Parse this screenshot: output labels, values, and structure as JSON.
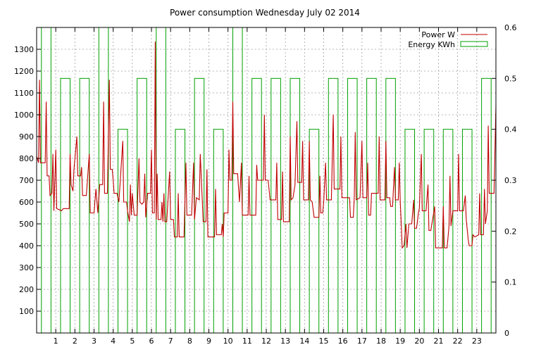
{
  "chart_data": {
    "type": "line",
    "title": "Power consumption Wednesday July 02 2014",
    "xlabel": "",
    "ylabel": "",
    "y2label": "",
    "xlim": [
      0,
      24
    ],
    "ylim": [
      0,
      1400
    ],
    "y2lim": [
      0,
      0.6
    ],
    "x_ticks": [
      1,
      2,
      3,
      4,
      5,
      6,
      7,
      8,
      9,
      10,
      11,
      12,
      13,
      14,
      15,
      16,
      17,
      18,
      19,
      20,
      21,
      22,
      23
    ],
    "y_ticks": [
      100,
      200,
      300,
      400,
      500,
      600,
      700,
      800,
      900,
      1000,
      1100,
      1200,
      1300
    ],
    "y2_ticks": [
      0,
      0.1,
      0.2,
      0.3,
      0.4,
      0.5,
      0.6
    ],
    "y2_tick_labels": [
      "0",
      "0.1",
      "0.2",
      "0.3",
      "0.4",
      "0.5",
      "0.6"
    ],
    "grid": true,
    "legend_position": "top-right",
    "series": [
      {
        "name": "Power W",
        "axis": "left",
        "style": "line",
        "color": "#c00000",
        "points": [
          [
            0.0,
            810
          ],
          [
            0.1,
            780
          ],
          [
            0.15,
            1160
          ],
          [
            0.2,
            780
          ],
          [
            0.45,
            780
          ],
          [
            0.5,
            1060
          ],
          [
            0.55,
            720
          ],
          [
            0.65,
            720
          ],
          [
            0.7,
            630
          ],
          [
            0.8,
            640
          ],
          [
            0.85,
            820
          ],
          [
            0.9,
            560
          ],
          [
            1.0,
            840
          ],
          [
            1.05,
            570
          ],
          [
            1.3,
            560
          ],
          [
            1.4,
            570
          ],
          [
            1.6,
            570
          ],
          [
            1.7,
            570
          ],
          [
            1.75,
            820
          ],
          [
            1.8,
            680
          ],
          [
            1.9,
            650
          ],
          [
            1.95,
            750
          ],
          [
            2.1,
            900
          ],
          [
            2.15,
            720
          ],
          [
            2.3,
            720
          ],
          [
            2.35,
            760
          ],
          [
            2.4,
            630
          ],
          [
            2.6,
            630
          ],
          [
            2.75,
            820
          ],
          [
            2.8,
            550
          ],
          [
            3.0,
            550
          ],
          [
            3.1,
            660
          ],
          [
            3.2,
            550
          ],
          [
            3.3,
            680
          ],
          [
            3.45,
            680
          ],
          [
            3.5,
            1060
          ],
          [
            3.55,
            640
          ],
          [
            3.7,
            640
          ],
          [
            3.8,
            1160
          ],
          [
            3.85,
            750
          ],
          [
            3.95,
            750
          ],
          [
            4.0,
            700
          ],
          [
            4.05,
            640
          ],
          [
            4.2,
            640
          ],
          [
            4.3,
            600
          ],
          [
            4.5,
            880
          ],
          [
            4.55,
            600
          ],
          [
            4.7,
            600
          ],
          [
            4.75,
            560
          ],
          [
            4.85,
            510
          ],
          [
            4.9,
            680
          ],
          [
            4.95,
            540
          ],
          [
            5.0,
            640
          ],
          [
            5.1,
            540
          ],
          [
            5.25,
            540
          ],
          [
            5.35,
            800
          ],
          [
            5.4,
            600
          ],
          [
            5.5,
            590
          ],
          [
            5.6,
            600
          ],
          [
            5.65,
            730
          ],
          [
            5.7,
            530
          ],
          [
            5.8,
            640
          ],
          [
            5.95,
            640
          ],
          [
            6.0,
            840
          ],
          [
            6.05,
            550
          ],
          [
            6.15,
            550
          ],
          [
            6.2,
            1335
          ],
          [
            6.25,
            520
          ],
          [
            6.3,
            730
          ],
          [
            6.35,
            520
          ],
          [
            6.5,
            520
          ],
          [
            6.55,
            600
          ],
          [
            6.6,
            510
          ],
          [
            6.65,
            640
          ],
          [
            6.7,
            510
          ],
          [
            6.8,
            510
          ],
          [
            6.95,
            740
          ],
          [
            7.0,
            520
          ],
          [
            7.15,
            520
          ],
          [
            7.2,
            440
          ],
          [
            7.35,
            440
          ],
          [
            7.4,
            640
          ],
          [
            7.45,
            440
          ],
          [
            7.7,
            440
          ],
          [
            7.8,
            780
          ],
          [
            7.85,
            540
          ],
          [
            8.1,
            540
          ],
          [
            8.2,
            780
          ],
          [
            8.25,
            520
          ],
          [
            8.35,
            620
          ],
          [
            8.5,
            610
          ],
          [
            8.55,
            820
          ],
          [
            8.65,
            620
          ],
          [
            8.7,
            510
          ],
          [
            8.85,
            510
          ],
          [
            8.9,
            750
          ],
          [
            8.95,
            440
          ],
          [
            9.3,
            440
          ],
          [
            9.35,
            660
          ],
          [
            9.4,
            450
          ],
          [
            9.65,
            450
          ],
          [
            9.7,
            500
          ],
          [
            9.75,
            440
          ],
          [
            9.8,
            550
          ],
          [
            10.0,
            550
          ],
          [
            10.05,
            840
          ],
          [
            10.1,
            700
          ],
          [
            10.2,
            700
          ],
          [
            10.25,
            1060
          ],
          [
            10.3,
            730
          ],
          [
            10.5,
            730
          ],
          [
            10.6,
            600
          ],
          [
            10.7,
            780
          ],
          [
            10.75,
            540
          ],
          [
            11.05,
            540
          ],
          [
            11.1,
            720
          ],
          [
            11.15,
            540
          ],
          [
            11.45,
            540
          ],
          [
            11.5,
            770
          ],
          [
            11.55,
            700
          ],
          [
            11.85,
            700
          ],
          [
            11.9,
            1000
          ],
          [
            11.95,
            700
          ],
          [
            12.1,
            700
          ],
          [
            12.2,
            610
          ],
          [
            12.5,
            610
          ],
          [
            12.55,
            780
          ],
          [
            12.6,
            520
          ],
          [
            12.7,
            520
          ],
          [
            12.8,
            520
          ],
          [
            12.85,
            740
          ],
          [
            12.9,
            510
          ],
          [
            13.2,
            510
          ],
          [
            13.25,
            900
          ],
          [
            13.3,
            610
          ],
          [
            13.4,
            620
          ],
          [
            13.5,
            680
          ],
          [
            13.6,
            970
          ],
          [
            13.65,
            690
          ],
          [
            13.85,
            690
          ],
          [
            13.9,
            880
          ],
          [
            13.95,
            610
          ],
          [
            14.2,
            610
          ],
          [
            14.25,
            880
          ],
          [
            14.3,
            610
          ],
          [
            14.4,
            600
          ],
          [
            14.5,
            530
          ],
          [
            14.75,
            530
          ],
          [
            14.8,
            720
          ],
          [
            14.85,
            550
          ],
          [
            14.95,
            550
          ],
          [
            15.0,
            600
          ],
          [
            15.1,
            780
          ],
          [
            15.15,
            610
          ],
          [
            15.4,
            610
          ],
          [
            15.5,
            1000
          ],
          [
            15.55,
            660
          ],
          [
            15.85,
            660
          ],
          [
            15.9,
            900
          ],
          [
            15.95,
            620
          ],
          [
            16.35,
            620
          ],
          [
            16.4,
            530
          ],
          [
            16.55,
            530
          ],
          [
            16.6,
            630
          ],
          [
            16.65,
            920
          ],
          [
            16.7,
            610
          ],
          [
            16.9,
            620
          ],
          [
            17.0,
            880
          ],
          [
            17.05,
            620
          ],
          [
            17.25,
            620
          ],
          [
            17.3,
            780
          ],
          [
            17.35,
            540
          ],
          [
            17.45,
            540
          ],
          [
            17.5,
            640
          ],
          [
            17.85,
            640
          ],
          [
            17.9,
            900
          ],
          [
            17.95,
            610
          ],
          [
            18.2,
            610
          ],
          [
            18.25,
            880
          ],
          [
            18.3,
            620
          ],
          [
            18.45,
            620
          ],
          [
            18.5,
            580
          ],
          [
            18.6,
            580
          ],
          [
            18.7,
            760
          ],
          [
            18.75,
            610
          ],
          [
            18.9,
            610
          ],
          [
            18.95,
            780
          ],
          [
            19.0,
            600
          ],
          [
            19.05,
            510
          ],
          [
            19.1,
            390
          ],
          [
            19.2,
            400
          ],
          [
            19.3,
            500
          ],
          [
            19.35,
            390
          ],
          [
            19.45,
            500
          ],
          [
            19.6,
            500
          ],
          [
            19.7,
            610
          ],
          [
            19.75,
            480
          ],
          [
            19.85,
            480
          ],
          [
            19.95,
            550
          ],
          [
            20.0,
            570
          ],
          [
            20.1,
            820
          ],
          [
            20.15,
            560
          ],
          [
            20.35,
            560
          ],
          [
            20.45,
            680
          ],
          [
            20.5,
            470
          ],
          [
            20.6,
            470
          ],
          [
            20.8,
            580
          ],
          [
            20.85,
            390
          ],
          [
            21.2,
            390
          ],
          [
            21.25,
            580
          ],
          [
            21.3,
            390
          ],
          [
            21.45,
            390
          ],
          [
            21.55,
            490
          ],
          [
            21.6,
            720
          ],
          [
            21.65,
            490
          ],
          [
            21.75,
            560
          ],
          [
            22.0,
            560
          ],
          [
            22.05,
            820
          ],
          [
            22.1,
            560
          ],
          [
            22.3,
            560
          ],
          [
            22.4,
            630
          ],
          [
            22.45,
            520
          ],
          [
            22.55,
            430
          ],
          [
            22.6,
            400
          ],
          [
            22.75,
            400
          ],
          [
            22.8,
            450
          ],
          [
            22.9,
            440
          ],
          [
            23.1,
            450
          ],
          [
            23.15,
            640
          ],
          [
            23.2,
            450
          ],
          [
            23.35,
            450
          ],
          [
            23.4,
            660
          ],
          [
            23.45,
            500
          ],
          [
            23.55,
            560
          ],
          [
            23.6,
            950
          ],
          [
            23.65,
            640
          ],
          [
            23.9,
            640
          ],
          [
            24.0,
            1040
          ]
        ]
      },
      {
        "name": "Energy KWh",
        "axis": "right",
        "style": "boxes",
        "color": "#00a000",
        "box_width": 0.5,
        "x": [
          0,
          1,
          2,
          3,
          4,
          5,
          6,
          7,
          8,
          9,
          10,
          11,
          12,
          13,
          14,
          15,
          16,
          17,
          18,
          19,
          20,
          21,
          22,
          23
        ],
        "values": [
          0.62,
          0.5,
          0.5,
          0.62,
          0.4,
          0.5,
          0.62,
          0.4,
          0.5,
          0.4,
          0.62,
          0.5,
          0.5,
          0.5,
          0.4,
          0.5,
          0.5,
          0.5,
          0.5,
          0.4,
          0.4,
          0.4,
          0.4,
          0.5
        ]
      }
    ]
  }
}
